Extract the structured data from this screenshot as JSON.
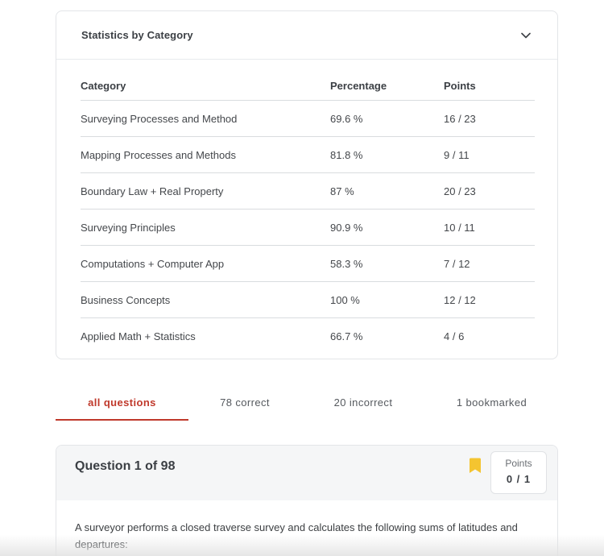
{
  "stats": {
    "title": "Statistics by Category",
    "columns": {
      "category": "Category",
      "percentage": "Percentage",
      "points": "Points"
    },
    "rows": [
      {
        "category": "Surveying Processes and Method",
        "percentage": "69.6 %",
        "points": "16 / 23"
      },
      {
        "category": "Mapping Processes and Methods",
        "percentage": "81.8 %",
        "points": "9 / 11"
      },
      {
        "category": "Boundary Law + Real Property",
        "percentage": "87 %",
        "points": "20 / 23"
      },
      {
        "category": "Surveying Principles",
        "percentage": "90.9 %",
        "points": "10 / 11"
      },
      {
        "category": "Computations + Computer App",
        "percentage": "58.3 %",
        "points": "7 / 12"
      },
      {
        "category": "Business Concepts",
        "percentage": "100 %",
        "points": "12 / 12"
      },
      {
        "category": "Applied Math + Statistics",
        "percentage": "66.7 %",
        "points": "4 / 6"
      }
    ],
    "collapse_icon": "chevron-down-icon"
  },
  "tabs": [
    {
      "label": "all questions",
      "active": true
    },
    {
      "label": "78 correct",
      "active": false
    },
    {
      "label": "20 incorrect",
      "active": false
    },
    {
      "label": "1 bookmarked",
      "active": false
    }
  ],
  "question": {
    "title": "Question 1 of 98",
    "bookmark_icon": "bookmark-icon",
    "points_label": "Points",
    "points_value": "0 / 1",
    "text": "A surveyor performs a closed traverse survey and calculates the following sums of latitudes and departures:"
  },
  "colors": {
    "accent": "#c0392b",
    "bookmark": "#f4c430",
    "border": "#e3e5e8",
    "header_bg": "#f5f6f7"
  }
}
